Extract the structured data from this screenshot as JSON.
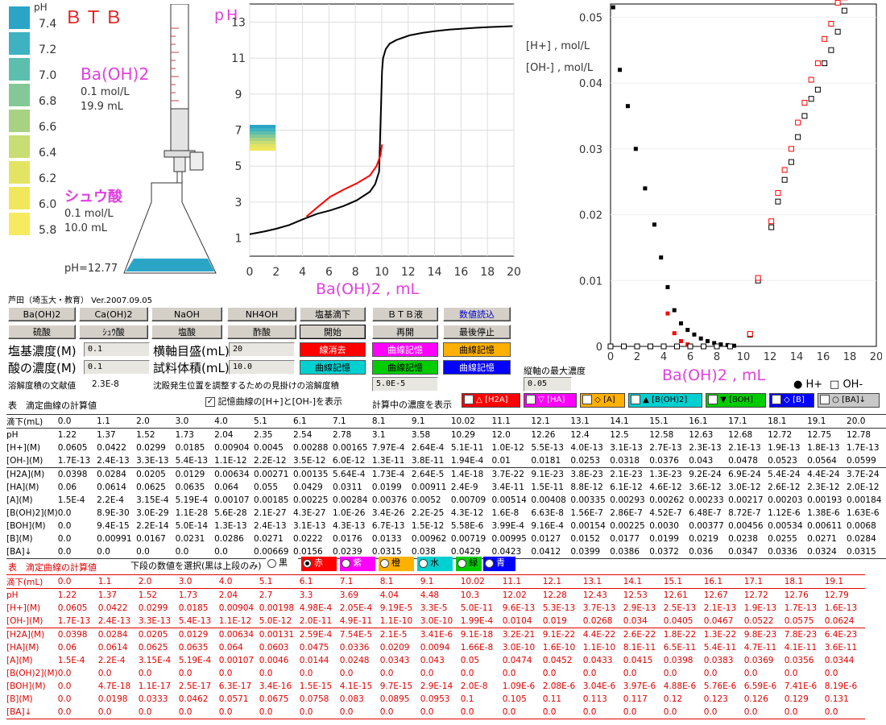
{
  "header": {
    "indicator_name": "ＢＴＢ",
    "ph_label": "pH",
    "base_name": "Ba(OH)2",
    "base_conc": "0.1 mol/L",
    "base_vol": "19.9 mL",
    "acid_name": "シュウ酸",
    "acid_conc": "0.1 mol/L",
    "acid_vol": "10.0 mL",
    "flask_ph": "pH=12.77",
    "author": "芦田（埼玉大・教育） Ver.2007.09.05"
  },
  "scale": {
    "labels": [
      "7.4",
      "7.2",
      "7.0",
      "6.8",
      "6.6",
      "6.4",
      "6.2",
      "6.0",
      "5.8"
    ],
    "colors": [
      "#2aa5c6",
      "#3eb2c1",
      "#5cbfae",
      "#83c896",
      "#a7d282",
      "#c8dd73",
      "#e3e464",
      "#f0e75c",
      "#f6ea60"
    ]
  },
  "chart_left": {
    "title": "pH",
    "xlabel": "Ba(OH)2 , mL",
    "yticks": [
      "1",
      "3",
      "5",
      "7",
      "9",
      "11",
      "13"
    ],
    "xticks": [
      "0",
      "2",
      "4",
      "6",
      "8",
      "10",
      "12",
      "14",
      "16",
      "18",
      "20"
    ]
  },
  "chart_right": {
    "ylabel1": "[H+] , mol/L",
    "ylabel2": "[OH-] , mol/L",
    "xlabel": "Ba(OH)2 , mL",
    "yticks": [
      "0",
      "0.01",
      "0.02",
      "0.03",
      "0.04",
      "0.05"
    ],
    "xticks": [
      "0",
      "2",
      "4",
      "6",
      "8",
      "10",
      "12",
      "14",
      "16",
      "18",
      "20"
    ],
    "legend_h": "H+",
    "legend_oh": "OH-"
  },
  "chart_data": [
    {
      "type": "line",
      "title": "pH",
      "xlabel": "Ba(OH)2 , mL",
      "ylabel": "pH",
      "xlim": [
        0,
        20
      ],
      "ylim": [
        0,
        14
      ],
      "series": [
        {
          "color": "#000000",
          "x": [
            0,
            1.1,
            2.0,
            3.0,
            4.0,
            5.1,
            6.1,
            7.1,
            8.1,
            9.1,
            9.5,
            9.8,
            10.02,
            10.1,
            10.3,
            10.6,
            11.1,
            12.1,
            13.1,
            14.1,
            15.1,
            16.1,
            17.1,
            18.1,
            19.1,
            19.9
          ],
          "y": [
            1.22,
            1.37,
            1.52,
            1.73,
            2.04,
            2.35,
            2.54,
            2.78,
            3.1,
            3.58,
            4.0,
            4.7,
            10.29,
            11.0,
            11.5,
            11.8,
            12.0,
            12.26,
            12.4,
            12.5,
            12.58,
            12.63,
            12.68,
            12.72,
            12.75,
            12.77
          ]
        },
        {
          "color": "#ff0000",
          "x": [
            4.3,
            5.1,
            6.1,
            7.1,
            8.1,
            9.1,
            9.6,
            9.9,
            10.02
          ],
          "y": [
            2.2,
            2.7,
            3.3,
            3.69,
            4.04,
            4.48,
            5.0,
            5.6,
            6.2
          ]
        }
      ]
    },
    {
      "type": "scatter",
      "xlabel": "Ba(OH)2 , mL",
      "ylabel": "[H+] , mol/L / [OH-] , mol/L",
      "xlim": [
        0,
        20
      ],
      "ylim": [
        0,
        0.052
      ],
      "series": [
        {
          "name": "H+",
          "color": "#000000",
          "x": [
            0.2,
            0.7,
            1.3,
            1.9,
            2.6,
            3.3,
            3.8,
            4.3,
            4.8,
            5.3,
            5.8,
            6.3,
            6.8,
            7.3,
            7.8,
            8.3,
            8.8,
            9.3
          ],
          "y": [
            0.0515,
            0.042,
            0.0365,
            0.03,
            0.024,
            0.0185,
            0.0135,
            0.009,
            0.0055,
            0.0035,
            0.0025,
            0.0018,
            0.0012,
            0.0008,
            0.0005,
            0.0003,
            0.0002,
            0.0001
          ]
        },
        {
          "name": "H+ (stored)",
          "color": "#ff0000",
          "x": [
            4.3,
            4.8,
            5.3,
            5.8
          ],
          "y": [
            0.005,
            0.002,
            0.0008,
            0.0003
          ]
        },
        {
          "name": "OH-",
          "color": "#000000",
          "marker": "open-square",
          "x": [
            0,
            1,
            2,
            3,
            4,
            5,
            6,
            7,
            8,
            9,
            10.5,
            11.1,
            12.1,
            12.6,
            13.1,
            13.6,
            14.1,
            14.6,
            15.1,
            15.6,
            16.1,
            16.6,
            17.1,
            17.6
          ],
          "y": [
            0,
            0,
            0,
            0,
            0,
            0,
            0,
            0,
            0,
            0,
            0.0018,
            0.01,
            0.0181,
            0.022,
            0.0253,
            0.028,
            0.0318,
            0.035,
            0.0376,
            0.039,
            0.043,
            0.045,
            0.0478,
            0.051
          ]
        },
        {
          "name": "OH- (stored)",
          "color": "#ff0000",
          "marker": "open-square",
          "x": [
            10.5,
            11.1,
            12.1,
            12.6,
            13.1,
            13.6,
            14.1,
            14.6,
            15.1,
            15.6,
            16.1,
            16.6,
            17.1,
            17.6
          ],
          "y": [
            0.0019,
            0.0104,
            0.019,
            0.0233,
            0.0268,
            0.03,
            0.034,
            0.037,
            0.0405,
            0.043,
            0.0467,
            0.049,
            0.0522,
            0.053
          ]
        }
      ]
    }
  ],
  "buttons": {
    "row1": [
      "Ba(OH)2",
      "Ca(OH)2",
      "NaOH",
      "NH4OH",
      "塩基滴下",
      "ＢＴＢ液",
      "数値読込"
    ],
    "row2": [
      "硫酸",
      "ｼｭｳ酸",
      "塩酸",
      "酢酸",
      "開始",
      "再開",
      "最後停止"
    ],
    "c1": [
      "線消去",
      "曲線記憶",
      "曲線記憶"
    ],
    "c2": [
      "曲線記憶",
      "曲線記憶",
      "曲線記憶"
    ]
  },
  "settings": {
    "base_conc_label": "塩基濃度(M)",
    "base_conc_value": "0.1",
    "acid_conc_label": "酸の濃度(M)",
    "acid_conc_value": "0.1",
    "xaxis_label": "横軸目盛(mL)",
    "xaxis_value": "20",
    "sample_label": "試料体積(mL)",
    "sample_value": "10.0",
    "ksp_label": "溶解度積の文献値",
    "ksp_value": "2.3E-8",
    "apparent_label": "沈殿発生位置を調整するための見掛けの溶解度積",
    "apparent_value": "5.0E-5",
    "ymax_label": "縦軸の最大濃度",
    "ymax_value": "0.05"
  },
  "table1": {
    "title": "表　滴定曲線の計算値",
    "show_check": "記憶曲線の[H+]と[OH-]を表示",
    "conc_label": "計算中の濃度を表示",
    "species": [
      "[H2A]",
      "[HA]",
      "[A]",
      "[B(OH)2]",
      "[BOH]",
      "[B]",
      "[BA]↓"
    ],
    "header": [
      "滴下(mL)",
      "0.0",
      "1.1",
      "2.0",
      "3.0",
      "4.0",
      "5.1",
      "6.1",
      "7.1",
      "8.1",
      "9.1",
      "10.02",
      "11.1",
      "12.1",
      "13.1",
      "14.1",
      "15.1",
      "16.1",
      "17.1",
      "18.1",
      "19.1",
      "20.0"
    ],
    "rows": [
      [
        "pH",
        "1.22",
        "1.37",
        "1.52",
        "1.73",
        "2.04",
        "2.35",
        "2.54",
        "2.78",
        "3.1",
        "3.58",
        "10.29",
        "12.0",
        "12.26",
        "12.4",
        "12.5",
        "12.58",
        "12.63",
        "12.68",
        "12.72",
        "12.75",
        "12.78"
      ],
      [
        "[H+](M)",
        "0.0605",
        "0.0422",
        "0.0299",
        "0.0185",
        "0.00904",
        "0.0045",
        "0.00288",
        "0.00165",
        "7.97E-4",
        "2.64E-4",
        "5.1E-11",
        "1.0E-12",
        "5.5E-13",
        "4.0E-13",
        "3.1E-13",
        "2.7E-13",
        "2.3E-13",
        "2.1E-13",
        "1.9E-13",
        "1.8E-13",
        "1.7E-13"
      ],
      [
        "[OH-](M)",
        "1.7E-13",
        "2.4E-13",
        "3.3E-13",
        "5.4E-13",
        "1.1E-12",
        "2.2E-12",
        "3.5E-12",
        "6.0E-12",
        "1.3E-11",
        "3.8E-11",
        "1.94E-4",
        "0.01",
        "0.0181",
        "0.0253",
        "0.0318",
        "0.0376",
        "0.043",
        "0.0478",
        "0.0523",
        "0.0564",
        "0.0599"
      ],
      [
        "[H2A](M)",
        "0.0398",
        "0.0284",
        "0.0205",
        "0.0129",
        "0.00634",
        "0.00271",
        "0.00135",
        "5.64E-4",
        "1.73E-4",
        "2.64E-5",
        "1.4E-18",
        "3.7E-22",
        "9.1E-23",
        "3.8E-23",
        "2.1E-23",
        "1.3E-23",
        "9.2E-24",
        "6.9E-24",
        "5.4E-24",
        "4.4E-24",
        "3.7E-24"
      ],
      [
        "[HA](M)",
        "0.06",
        "0.0614",
        "0.0625",
        "0.0635",
        "0.064",
        "0.055",
        "0.0429",
        "0.0311",
        "0.0199",
        "0.00911",
        "2.4E-9",
        "3.4E-11",
        "1.5E-11",
        "8.8E-12",
        "6.1E-12",
        "4.6E-12",
        "3.6E-12",
        "3.0E-12",
        "2.6E-12",
        "2.3E-12",
        "2.0E-12"
      ],
      [
        "[A](M)",
        "1.5E-4",
        "2.2E-4",
        "3.15E-4",
        "5.19E-4",
        "0.00107",
        "0.00185",
        "0.00225",
        "0.00284",
        "0.00376",
        "0.0052",
        "0.00709",
        "0.00514",
        "0.00408",
        "0.00335",
        "0.00293",
        "0.00262",
        "0.00233",
        "0.00217",
        "0.00203",
        "0.00193",
        "0.00184"
      ],
      [
        "[B(OH)2](M)",
        "0.0",
        "8.9E-30",
        "3.0E-29",
        "1.1E-28",
        "5.6E-28",
        "2.1E-27",
        "4.3E-27",
        "1.0E-26",
        "3.4E-26",
        "2.2E-25",
        "4.3E-12",
        "1.6E-8",
        "6.63E-8",
        "1.56E-7",
        "2.86E-7",
        "4.52E-7",
        "6.48E-7",
        "8.72E-7",
        "1.12E-6",
        "1.38E-6",
        "1.63E-6"
      ],
      [
        "[BOH](M)",
        "0.0",
        "9.4E-15",
        "2.2E-14",
        "5.0E-14",
        "1.3E-13",
        "2.4E-13",
        "3.1E-13",
        "4.3E-13",
        "6.7E-13",
        "1.5E-12",
        "5.58E-6",
        "3.99E-4",
        "9.16E-4",
        "0.00154",
        "0.00225",
        "0.0030",
        "0.00377",
        "0.00456",
        "0.00534",
        "0.00611",
        "0.0068"
      ],
      [
        "[B](M)",
        "0.0",
        "0.00991",
        "0.0167",
        "0.0231",
        "0.0286",
        "0.0271",
        "0.0222",
        "0.0176",
        "0.0133",
        "0.00962",
        "0.00719",
        "0.00995",
        "0.0127",
        "0.0152",
        "0.0177",
        "0.0199",
        "0.0219",
        "0.0238",
        "0.0255",
        "0.0271",
        "0.0284"
      ],
      [
        "[BA]↓",
        "0.0",
        "0.0",
        "0.0",
        "0.0",
        "0.0",
        "0.00669",
        "0.0156",
        "0.0239",
        "0.0315",
        "0.038",
        "0.0429",
        "0.0423",
        "0.0412",
        "0.0399",
        "0.0386",
        "0.0372",
        "0.036",
        "0.0347",
        "0.0336",
        "0.0324",
        "0.0315"
      ]
    ]
  },
  "table2": {
    "title": "表　滴定曲線の計算値",
    "select_label": "下段の数値を選択(黒は上段のみ)",
    "radios": [
      "黒",
      "赤",
      "紫",
      "橙",
      "水",
      "緑",
      "青"
    ],
    "header": [
      "滴下(mL)",
      "0.0",
      "1.1",
      "2.0",
      "3.0",
      "4.0",
      "5.1",
      "6.1",
      "7.1",
      "8.1",
      "9.1",
      "10.02",
      "11.1",
      "12.1",
      "13.1",
      "14.1",
      "15.1",
      "16.1",
      "17.1",
      "18.1",
      "19.1"
    ],
    "rows": [
      [
        "pH",
        "1.22",
        "1.37",
        "1.52",
        "1.73",
        "2.04",
        "2.7",
        "3.3",
        "3.69",
        "4.04",
        "4.48",
        "10.3",
        "12.02",
        "12.28",
        "12.43",
        "12.53",
        "12.61",
        "12.67",
        "12.72",
        "12.76",
        "12.79"
      ],
      [
        "[H+](M)",
        "0.0605",
        "0.0422",
        "0.0299",
        "0.0185",
        "0.00904",
        "0.00198",
        "4.98E-4",
        "2.05E-4",
        "9.19E-5",
        "3.3E-5",
        "5.0E-11",
        "9.6E-13",
        "5.3E-13",
        "3.7E-13",
        "2.9E-13",
        "2.5E-13",
        "2.1E-13",
        "1.9E-13",
        "1.7E-13",
        "1.6E-13"
      ],
      [
        "[OH-](M)",
        "1.7E-13",
        "2.4E-13",
        "3.3E-13",
        "5.4E-13",
        "1.1E-12",
        "5.0E-12",
        "2.0E-11",
        "4.9E-11",
        "1.1E-10",
        "3.0E-10",
        "1.99E-4",
        "0.0104",
        "0.019",
        "0.0268",
        "0.034",
        "0.0405",
        "0.0467",
        "0.0522",
        "0.0575",
        "0.0624"
      ],
      [
        "[H2A](M)",
        "0.0398",
        "0.0284",
        "0.0205",
        "0.0129",
        "0.00634",
        "0.00131",
        "2.59E-4",
        "7.54E-5",
        "2.1E-5",
        "3.41E-6",
        "9.1E-18",
        "3.2E-21",
        "9.1E-22",
        "4.4E-22",
        "2.6E-22",
        "1.8E-22",
        "1.3E-22",
        "9.8E-23",
        "7.8E-23",
        "6.4E-23"
      ],
      [
        "[HA](M)",
        "0.06",
        "0.0614",
        "0.0625",
        "0.0635",
        "0.064",
        "0.0603",
        "0.0475",
        "0.0336",
        "0.0209",
        "0.0094",
        "1.66E-8",
        "3.0E-10",
        "1.6E-10",
        "1.1E-10",
        "8.1E-11",
        "6.5E-11",
        "5.4E-11",
        "4.7E-11",
        "4.1E-11",
        "3.6E-11"
      ],
      [
        "[A](M)",
        "1.5E-4",
        "2.2E-4",
        "3.15E-4",
        "5.19E-4",
        "0.00107",
        "0.0046",
        "0.0144",
        "0.0248",
        "0.0343",
        "0.043",
        "0.05",
        "0.0474",
        "0.0452",
        "0.0433",
        "0.0415",
        "0.0398",
        "0.0383",
        "0.0369",
        "0.0356",
        "0.0344"
      ],
      [
        "[B(OH)2](M)",
        "0.0",
        "0.0",
        "0.0",
        "0.0",
        "0.0",
        "0.0",
        "0.0",
        "0.0",
        "0.0",
        "0.0",
        "0.0",
        "0.0",
        "0.0",
        "0.0",
        "0.0",
        "0.0",
        "0.0",
        "0.0",
        "0.0",
        "0.0"
      ],
      [
        "[BOH](M)",
        "0.0",
        "4.7E-18",
        "1.1E-17",
        "2.5E-17",
        "6.3E-17",
        "3.4E-16",
        "1.5E-15",
        "4.1E-15",
        "9.7E-15",
        "2.9E-14",
        "2.0E-8",
        "1.09E-6",
        "2.08E-6",
        "3.04E-6",
        "3.97E-6",
        "4.88E-6",
        "5.76E-6",
        "6.59E-6",
        "7.41E-6",
        "8.19E-6"
      ],
      [
        "[B](M)",
        "0.0",
        "0.0198",
        "0.0333",
        "0.0462",
        "0.0571",
        "0.0675",
        "0.0758",
        "0.083",
        "0.0895",
        "0.0953",
        "0.1",
        "0.105",
        "0.11",
        "0.113",
        "0.117",
        "0.12",
        "0.123",
        "0.126",
        "0.129",
        "0.131"
      ],
      [
        "[BA]↓",
        "0.0",
        "0.0",
        "0.0",
        "0.0",
        "0.0",
        "0.0",
        "0.0",
        "0.0",
        "0.0",
        "0.0",
        "0.0",
        "0.0",
        "0.0",
        "0.0",
        "0.0",
        "0.0",
        "0.0",
        "0.0",
        "0.0",
        "0.0"
      ]
    ]
  }
}
